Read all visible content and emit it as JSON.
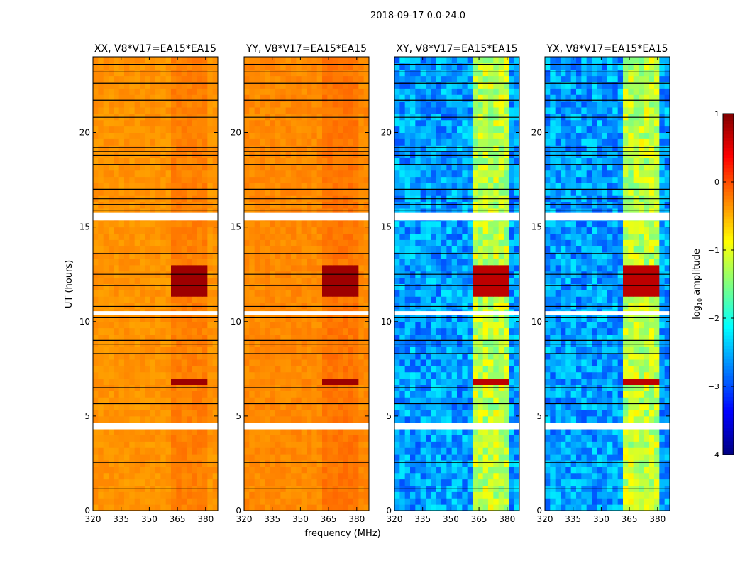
{
  "chart_data": {
    "type": "heatmap",
    "title": "2018-09-17 0.0-24.0",
    "xlabel": "frequency (MHz)",
    "ylabel": "UT (hours)",
    "xlim": [
      320,
      386.5
    ],
    "ylim": [
      0,
      24
    ],
    "xticks": [
      "320",
      "335",
      "350",
      "365",
      "380"
    ],
    "xtick_values": [
      320,
      335,
      350,
      365,
      380
    ],
    "yticks": [
      "0",
      "5",
      "10",
      "15",
      "20"
    ],
    "ytick_values": [
      0,
      5,
      10,
      15,
      20
    ],
    "panels": [
      {
        "title": "XX, V8*V17=EA15*EA15",
        "base": -0.35,
        "band_level": -0.25,
        "rfi_level": 0.85
      },
      {
        "title": "YY, V8*V17=EA15*EA15",
        "base": -0.3,
        "band_level": -0.2,
        "rfi_level": 0.85
      },
      {
        "title": "XY, V8*V17=EA15*EA15",
        "base": -2.6,
        "band_level": -1.2,
        "rfi_level": 0.7
      },
      {
        "title": "YX, V8*V17=EA15*EA15",
        "base": -2.6,
        "band_level": -1.2,
        "rfi_level": 0.7
      }
    ],
    "band_range_mhz": [
      362,
      382
    ],
    "rfi_time_ranges": [
      [
        6.6,
        7.1
      ],
      [
        11.5,
        13.0
      ]
    ],
    "flagged_gaps_hours": [
      [
        4.3,
        4.65
      ],
      [
        15.35,
        15.75
      ],
      [
        10.35,
        10.55
      ]
    ],
    "flagged_lines_hours": [
      1.15,
      2.55,
      5.65,
      6.5,
      8.3,
      8.8,
      9.0,
      10.2,
      10.8,
      11.9,
      12.5,
      13.6,
      15.9,
      16.2,
      16.5,
      17.0,
      18.3,
      18.8,
      19.0,
      19.2,
      20.8,
      21.7,
      22.6,
      23.2,
      23.6
    ],
    "colorbar": {
      "label": "log10 amplitude",
      "label_main": "log",
      "label_sub": "10",
      "label_rest": " amplitude",
      "range": [
        -4,
        1
      ],
      "ticks": [
        "1",
        "0",
        "−1",
        "−2",
        "−3",
        "−4"
      ],
      "tick_values": [
        1,
        0,
        -1,
        -2,
        -3,
        -4
      ],
      "colormap": "jet"
    }
  }
}
